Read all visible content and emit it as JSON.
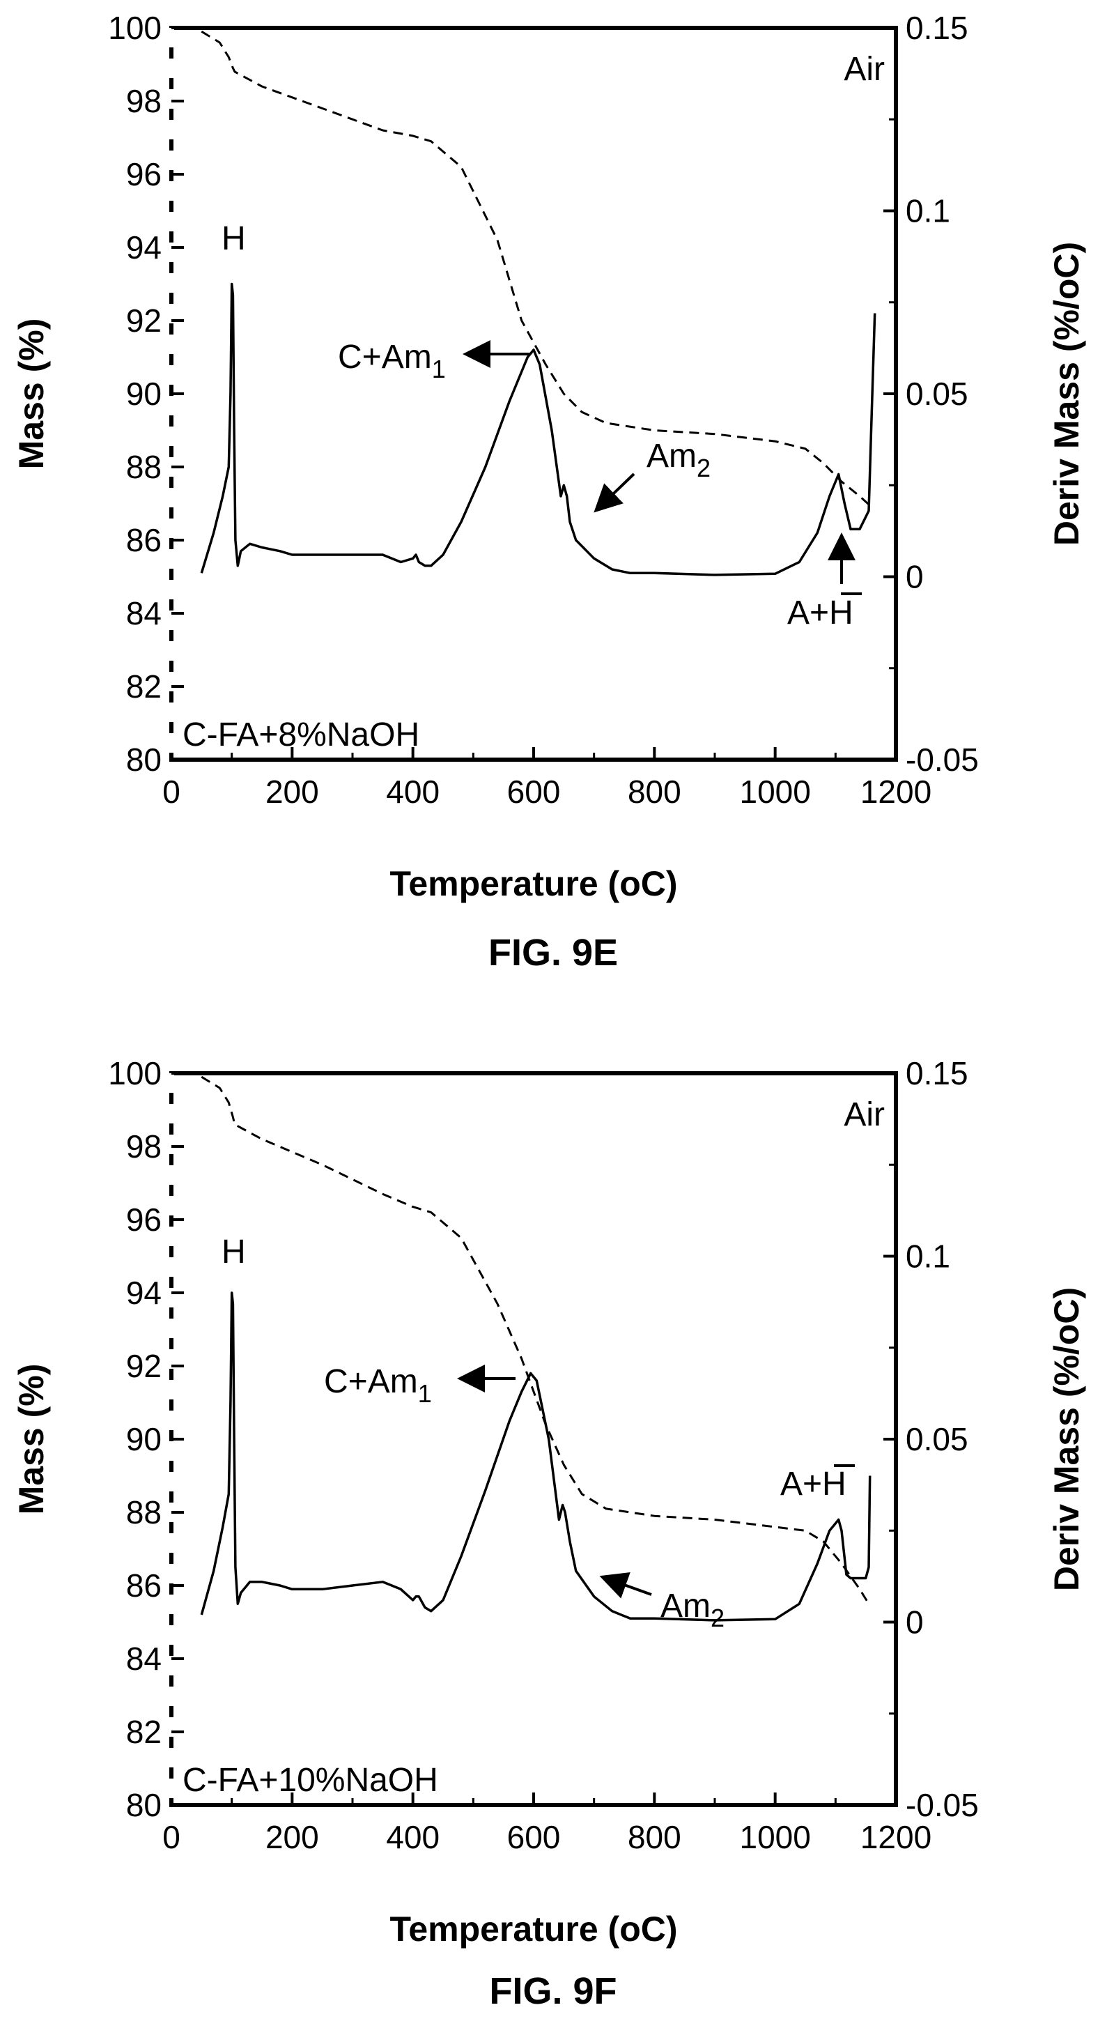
{
  "chart_data": [
    {
      "type": "line",
      "figure_label": "FIG. 9E",
      "xlabel": "Temperature (oC)",
      "ylabel": "Mass (%)",
      "y2label": "Deriv Mass (%/oC)",
      "xlim": [
        0,
        1200
      ],
      "ylim": [
        80,
        100
      ],
      "y2lim": [
        -0.05,
        0.15
      ],
      "xticks": [
        "0",
        "200",
        "400",
        "600",
        "800",
        "1000",
        "1200"
      ],
      "yticks": [
        "80",
        "82",
        "84",
        "86",
        "88",
        "90",
        "92",
        "94",
        "96",
        "98",
        "100"
      ],
      "y2ticks": [
        "-0.05",
        "0",
        "0.05",
        "0.1",
        "0.15"
      ],
      "atmosphere": "Air",
      "sample": "C-FA+8%NaOH",
      "annotations": {
        "H": "H",
        "c_am1": "C+Am",
        "c_am1_sub": "1",
        "am2": "Am",
        "am2_sub": "2",
        "a_h": "A+H"
      },
      "series": [
        {
          "axis": "left",
          "style": "dashed",
          "x": [
            50,
            80,
            95,
            102,
            105,
            150,
            250,
            350,
            400,
            430,
            480,
            540,
            580,
            620,
            650,
            680,
            720,
            800,
            900,
            1000,
            1050,
            1080,
            1110,
            1140,
            1160
          ],
          "y": [
            99.9,
            99.6,
            99.2,
            98.9,
            98.8,
            98.4,
            97.8,
            97.2,
            97.05,
            96.9,
            96.2,
            94.2,
            92.0,
            90.8,
            90.0,
            89.5,
            89.2,
            89.0,
            88.9,
            88.7,
            88.5,
            88.1,
            87.6,
            87.2,
            86.9
          ]
        },
        {
          "axis": "right",
          "style": "solid",
          "x": [
            50,
            70,
            85,
            95,
            98,
            100,
            102,
            104,
            106,
            110,
            115,
            130,
            150,
            180,
            200,
            250,
            300,
            350,
            380,
            400,
            405,
            410,
            420,
            430,
            450,
            480,
            520,
            560,
            590,
            600,
            610,
            630,
            645,
            650,
            655,
            660,
            670,
            700,
            730,
            760,
            800,
            900,
            1000,
            1040,
            1070,
            1090,
            1105,
            1115,
            1125,
            1140,
            1155,
            1160,
            1165
          ],
          "y": [
            0.001,
            0.012,
            0.022,
            0.03,
            0.05,
            0.08,
            0.077,
            0.04,
            0.01,
            0.003,
            0.007,
            0.009,
            0.008,
            0.007,
            0.006,
            0.006,
            0.006,
            0.006,
            0.004,
            0.005,
            0.006,
            0.004,
            0.003,
            0.003,
            0.006,
            0.015,
            0.03,
            0.048,
            0.06,
            0.062,
            0.058,
            0.04,
            0.022,
            0.025,
            0.022,
            0.015,
            0.01,
            0.005,
            0.002,
            0.001,
            0.001,
            0.0005,
            0.0008,
            0.004,
            0.012,
            0.022,
            0.028,
            0.02,
            0.013,
            0.013,
            0.018,
            0.045,
            0.072
          ]
        }
      ]
    },
    {
      "type": "line",
      "figure_label": "FIG. 9F",
      "xlabel": "Temperature (oC)",
      "ylabel": "Mass (%)",
      "y2label": "Deriv Mass (%/oC)",
      "xlim": [
        0,
        1200
      ],
      "ylim": [
        80,
        100
      ],
      "y2lim": [
        -0.05,
        0.15
      ],
      "xticks": [
        "0",
        "200",
        "400",
        "600",
        "800",
        "1000",
        "1200"
      ],
      "yticks": [
        "80",
        "82",
        "84",
        "86",
        "88",
        "90",
        "92",
        "94",
        "96",
        "98",
        "100"
      ],
      "y2ticks": [
        "-0.05",
        "0",
        "0.05",
        "0.1",
        "0.15"
      ],
      "atmosphere": "Air",
      "sample": "C-FA+10%NaOH",
      "annotations": {
        "H": "H",
        "c_am1": "C+Am",
        "c_am1_sub": "1",
        "am2": "Am",
        "am2_sub": "2",
        "a_h": "A+H"
      },
      "series": [
        {
          "axis": "left",
          "style": "dashed",
          "x": [
            50,
            80,
            95,
            102,
            105,
            150,
            250,
            350,
            400,
            430,
            480,
            540,
            580,
            620,
            650,
            680,
            720,
            800,
            900,
            1000,
            1050,
            1080,
            1110,
            1140,
            1155
          ],
          "y": [
            99.9,
            99.6,
            99.2,
            98.8,
            98.6,
            98.2,
            97.5,
            96.7,
            96.35,
            96.2,
            95.5,
            93.7,
            92.2,
            90.4,
            89.3,
            88.5,
            88.1,
            87.9,
            87.8,
            87.6,
            87.5,
            87.2,
            86.6,
            85.9,
            85.5
          ]
        },
        {
          "axis": "right",
          "style": "solid",
          "x": [
            50,
            70,
            85,
            95,
            98,
            100,
            102,
            104,
            106,
            110,
            115,
            130,
            150,
            180,
            200,
            250,
            300,
            350,
            380,
            400,
            405,
            410,
            420,
            430,
            450,
            480,
            520,
            560,
            580,
            595,
            605,
            625,
            642,
            648,
            652,
            660,
            670,
            700,
            730,
            760,
            800,
            900,
            1000,
            1040,
            1070,
            1090,
            1105,
            1110,
            1118,
            1125,
            1140,
            1150,
            1155,
            1157
          ],
          "y": [
            0.002,
            0.014,
            0.026,
            0.035,
            0.06,
            0.09,
            0.087,
            0.05,
            0.015,
            0.005,
            0.008,
            0.011,
            0.011,
            0.01,
            0.009,
            0.009,
            0.01,
            0.011,
            0.009,
            0.006,
            0.007,
            0.007,
            0.004,
            0.003,
            0.006,
            0.018,
            0.036,
            0.055,
            0.063,
            0.068,
            0.066,
            0.05,
            0.028,
            0.032,
            0.03,
            0.022,
            0.014,
            0.007,
            0.003,
            0.001,
            0.001,
            0.0005,
            0.0008,
            0.005,
            0.016,
            0.025,
            0.028,
            0.025,
            0.013,
            0.012,
            0.012,
            0.012,
            0.015,
            0.04
          ]
        }
      ]
    }
  ]
}
